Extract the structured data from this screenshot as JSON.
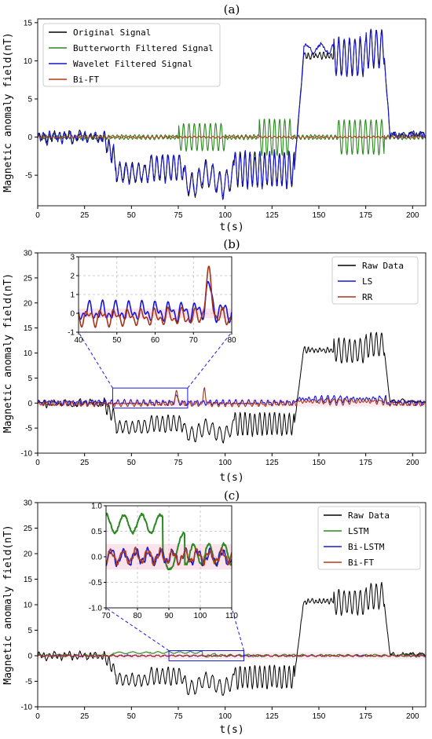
{
  "colors": {
    "original": "#000000",
    "butterworth": "#2a8a1f",
    "wavelet": "#1515c8",
    "bift": "#b03b1a",
    "ls": "#1515e0",
    "rr": "#a83418",
    "lstm": "#2a8a1f",
    "bilstm": "#1a1ad0",
    "band": "#f6c2d2",
    "zoom": "#1a1ae0",
    "grid": "#bdbdbd"
  },
  "chart_data": [
    {
      "type": "line",
      "title": "(a)",
      "xlabel": "t(s)",
      "ylabel": "Magnetic anomaly field(nT)",
      "xlim": [
        0,
        207
      ],
      "ylim": [
        -9,
        15.5
      ],
      "xticks": [
        "0",
        "25",
        "50",
        "75",
        "100",
        "125",
        "150",
        "175",
        "200"
      ],
      "yticks": [
        "-5",
        "0",
        "5",
        "10",
        "15"
      ],
      "legend_position": "top-left",
      "series": [
        {
          "name": "Original Signal",
          "color_key": "original",
          "signal": "raw"
        },
        {
          "name": "Butterworth Filtered Signal",
          "color_key": "butterworth",
          "signal": "osc"
        },
        {
          "name": "Wavelet Filtered Signal",
          "color_key": "wavelet",
          "signal": "wavelet"
        },
        {
          "name": "Bi-FT",
          "color_key": "bift",
          "signal": "flat"
        }
      ]
    },
    {
      "type": "line",
      "title": "(b)",
      "xlabel": "t(s)",
      "ylabel": "Magnetic anomaly field(nT)",
      "xlim": [
        0,
        207
      ],
      "ylim": [
        -10,
        30
      ],
      "xticks": [
        "0",
        "25",
        "50",
        "75",
        "100",
        "125",
        "150",
        "175",
        "200"
      ],
      "yticks": [
        "-10",
        "-5",
        "0",
        "5",
        "10",
        "15",
        "20",
        "25",
        "30"
      ],
      "legend_position": "top-right",
      "series": [
        {
          "name": "Raw Data",
          "color_key": "original",
          "signal": "raw"
        },
        {
          "name": "LS",
          "color_key": "ls",
          "signal": "ls"
        },
        {
          "name": "RR",
          "color_key": "rr",
          "signal": "rr"
        }
      ],
      "inset": {
        "xlim": [
          40,
          80
        ],
        "ylim": [
          -1,
          3
        ],
        "xticks": [
          "40",
          "50",
          "60",
          "70",
          "80"
        ],
        "yticks": [
          "-1",
          "0",
          "1",
          "2",
          "3"
        ],
        "zoom_ylim": [
          -1,
          3
        ]
      }
    },
    {
      "type": "line",
      "title": "(c)",
      "xlabel": "t(s)",
      "ylabel": "Magnetic anomaly field(nT)",
      "xlim": [
        0,
        207
      ],
      "ylim": [
        -10,
        30
      ],
      "xticks": [
        "0",
        "25",
        "50",
        "75",
        "100",
        "125",
        "150",
        "175",
        "200"
      ],
      "yticks": [
        "-10",
        "-5",
        "0",
        "5",
        "10",
        "15",
        "20",
        "25",
        "30"
      ],
      "legend_position": "top-right",
      "series": [
        {
          "name": "Raw Data",
          "color_key": "original",
          "signal": "raw"
        },
        {
          "name": "LSTM",
          "color_key": "lstm",
          "signal": "lstm"
        },
        {
          "name": "Bi-LSTM",
          "color_key": "bilstm",
          "signal": "bilstm"
        },
        {
          "name": "Bi-FT",
          "color_key": "bift",
          "signal": "bift_c"
        }
      ],
      "inset": {
        "xlim": [
          70,
          110
        ],
        "ylim": [
          -1,
          1
        ],
        "xticks": [
          "70",
          "80",
          "90",
          "100",
          "110"
        ],
        "yticks": [
          "-1.0",
          "-0.5",
          "0.0",
          "0.5",
          "1.0"
        ],
        "zoom_ylim": [
          -1,
          1
        ]
      }
    }
  ]
}
